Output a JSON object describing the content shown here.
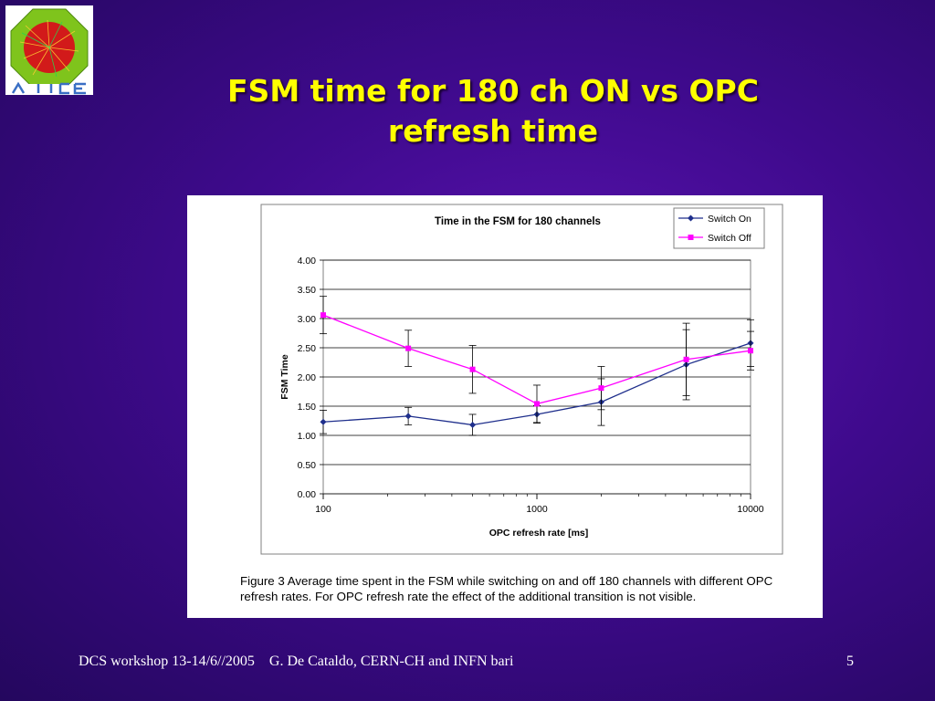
{
  "slide": {
    "title_line1": "FSM time for 180 ch ON vs OPC",
    "title_line2": "refresh time",
    "footer_text": "DCS workshop 13-14/6//2005    G. De Cataldo, CERN-CH and INFN bari",
    "page_number": "5",
    "colors": {
      "title": "#ffff00",
      "background": "#3e0a8c"
    }
  },
  "figure": {
    "caption": "Figure 3 Average time spent in the FSM while switching on and off 180 channels with different OPC refresh rates. For OPC refresh rate the effect of the additional transition is not visible."
  },
  "chart_data": {
    "type": "line",
    "title": "Time in the FSM for 180 channels",
    "xlabel": "OPC refresh rate [ms]",
    "ylabel": "FSM Time",
    "x_scale": "log",
    "xlim": [
      100,
      10000
    ],
    "ylim": [
      0,
      4
    ],
    "x_ticks": [
      "100",
      "1000",
      "10000"
    ],
    "y_ticks": [
      "0.00",
      "0.50",
      "1.00",
      "1.50",
      "2.00",
      "2.50",
      "3.00",
      "3.50",
      "4.00"
    ],
    "grid": "horizontal",
    "legend_position": "top-right",
    "x": [
      100,
      250,
      500,
      1000,
      2000,
      5000,
      10000
    ],
    "series": [
      {
        "name": "Switch On",
        "color": "#1f2f8c",
        "marker": "diamond",
        "values": [
          1.23,
          1.33,
          1.18,
          1.36,
          1.57,
          2.21,
          2.58
        ],
        "error": [
          0.2,
          0.15,
          0.18,
          0.15,
          0.4,
          0.6,
          0.4
        ]
      },
      {
        "name": "Switch Off",
        "color": "#ff00ff",
        "marker": "square",
        "values": [
          3.06,
          2.49,
          2.13,
          1.54,
          1.81,
          2.3,
          2.45
        ],
        "error": [
          0.32,
          0.31,
          0.41,
          0.32,
          0.37,
          0.62,
          0.33
        ]
      }
    ]
  }
}
